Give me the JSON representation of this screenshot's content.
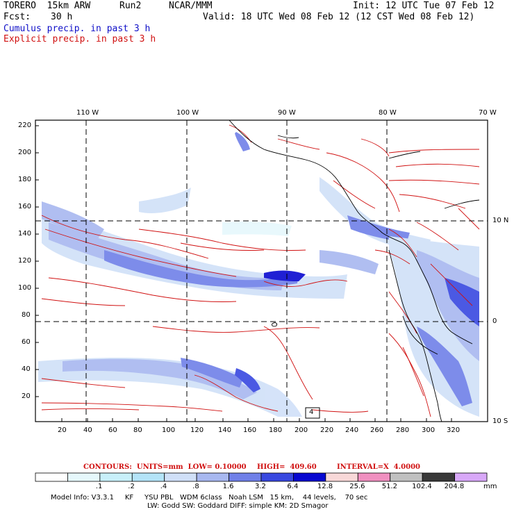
{
  "header": {
    "model": "TORERO  15km ARW",
    "run": "Run2",
    "org": "NCAR/MMM",
    "init": "Init: 12 UTC Tue 07 Feb 12",
    "fcst_label": "Fcst:",
    "fcst_hours": "30 h",
    "valid": "Valid: 18 UTC Wed 08 Feb 12 (12 CST Wed 08 Feb 12)",
    "legend_cumulus": "Cumulus precip. in past 3 h",
    "legend_explicit": "Explicit precip. in past 3 h"
  },
  "axes": {
    "lon_labels": [
      "110 W",
      "100 W",
      "90 W",
      "80 W",
      "70 W"
    ],
    "lat_labels": [
      "10 N",
      "0",
      "10 S"
    ],
    "y_ticks": [
      "220",
      "200",
      "180",
      "160",
      "140",
      "120",
      "100",
      "80",
      "60",
      "40",
      "20"
    ],
    "x_ticks": [
      "20",
      "40",
      "60",
      "80",
      "100",
      "120",
      "140",
      "160",
      "180",
      "200",
      "220",
      "240",
      "260",
      "280",
      "300",
      "320"
    ]
  },
  "box_label": "4",
  "contours_info": {
    "units": "CONTOURS:  UNITS=mm  LOW= 0.10000",
    "high": "HIGH=  409.60",
    "interval": "INTERVAL=X  4.0000"
  },
  "colorbar": {
    "unit": "mm",
    "labels": [
      ".1",
      ".2",
      ".4",
      ".8",
      "1.6",
      "3.2",
      "6.4",
      "12.8",
      "25.6",
      "51.2",
      "102.4",
      "204.8"
    ],
    "colors": [
      "#ffffff",
      "#e6f8fc",
      "#c8f0fa",
      "#b4e4f8",
      "#d0e0f8",
      "#a8b8f0",
      "#7080e8",
      "#3848e0",
      "#0808d0",
      "#f8d8d8",
      "#f090c0",
      "#c0c0c0",
      "#383838",
      "#d8a8f8"
    ]
  },
  "footer": {
    "line1": "Model Info: V3.3.1     KF     YSU PBL   WDM 6class   Noah LSM   15 km,    44 levels,    70 sec",
    "line2": "LW: Godd SW: Goddard DIFF: simple KM: 2D Smagor"
  },
  "colors": {
    "cumulus": "#1010c8",
    "explicit": "#d01010",
    "grid": "#000000"
  }
}
